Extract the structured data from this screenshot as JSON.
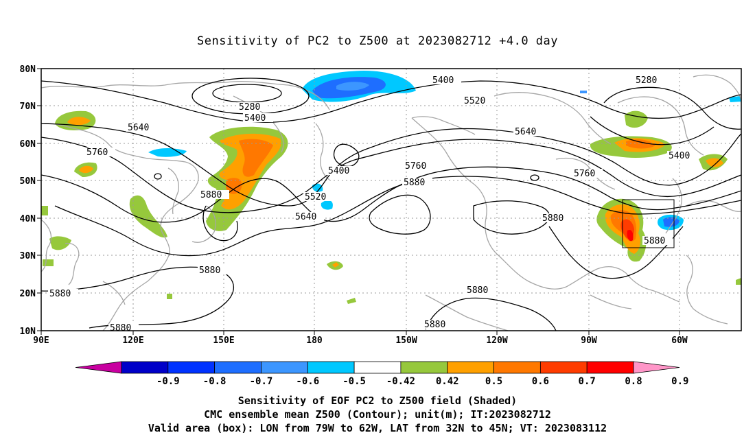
{
  "title": "Sensitivity of PC2 to Z500 at 2023082712 +4.0 day",
  "map": {
    "lat_ticks": [
      "80N",
      "70N",
      "60N",
      "50N",
      "40N",
      "30N",
      "20N",
      "10N"
    ],
    "lon_ticks": [
      "90E",
      "120E",
      "150E",
      "180",
      "150W",
      "120W",
      "90W",
      "60W"
    ],
    "contour_color": "#000000",
    "coastline_color": "#a6a6a6",
    "contour_labels": [
      "5280",
      "5400",
      "5640",
      "5760",
      "5880",
      "5880",
      "5880",
      "5880",
      "5400",
      "5520",
      "5640",
      "5520",
      "5400",
      "5640",
      "5760",
      "5880",
      "5880",
      "5280",
      "5400",
      "5760",
      "5880",
      "5880",
      "5880"
    ],
    "valid_box": {
      "lon_min": -79,
      "lon_max": -62,
      "lat_min": 32,
      "lat_max": 45
    }
  },
  "colorbar": {
    "labels": [
      "-0.9",
      "-0.8",
      "-0.7",
      "-0.6",
      "-0.5",
      "-0.42",
      "0.42",
      "0.5",
      "0.6",
      "0.7",
      "0.8",
      "0.9"
    ],
    "colors": [
      "#c800a0",
      "#0000c8",
      "#0032ff",
      "#1e6eff",
      "#3c96ff",
      "#00c8ff",
      "#ffffff",
      "#96c83c",
      "#ffa000",
      "#ff7800",
      "#ff3c00",
      "#ff0000",
      "#ff96c8"
    ]
  },
  "captions": {
    "line1": "Sensitivity of EOF PC2 to Z500 field (Shaded)",
    "line2": "CMC ensemble mean Z500 (Contour); unit(m); IT:2023082712",
    "line3": "Valid area (box): LON from 79W to 62W, LAT from 32N to 45N; VT: 2023083112"
  }
}
